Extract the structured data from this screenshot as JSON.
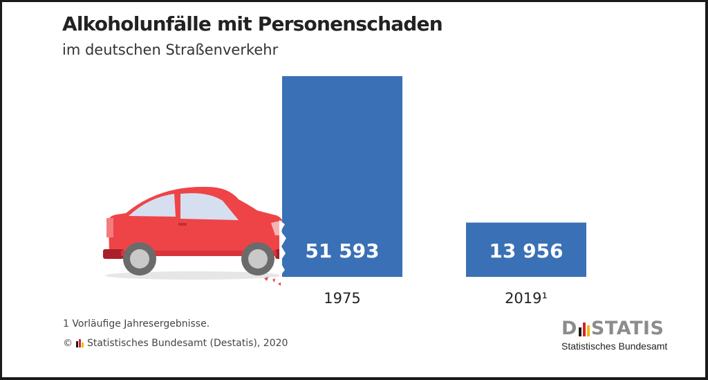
{
  "header": {
    "title": "Alkoholunfälle mit Personenschaden",
    "subtitle": "im deutschen Straßenverkehr"
  },
  "chart_data": {
    "type": "bar",
    "title": "Alkoholunfälle mit Personenschaden",
    "subtitle": "im deutschen Straßenverkehr",
    "categories": [
      "1975",
      "2019¹"
    ],
    "values": [
      51593,
      13956
    ],
    "value_labels": [
      "51 593",
      "13 956"
    ],
    "xlabel": "",
    "ylabel": "",
    "ylim": [
      0,
      51593
    ],
    "grid": false,
    "legend": "none",
    "bar_color": "#3a70b5",
    "label_color": "#ffffff",
    "annotations": [
      "red car illustration crashing into 1975 bar"
    ]
  },
  "footer": {
    "footnote": "1  Vorläufige Jahresergebnisse.",
    "copyright_symbol": "©",
    "credit": "Statistisches Bundesamt (Destatis), 2020",
    "logo_word_left": "D",
    "logo_word_right": "STATIS",
    "logo_subtitle": "Statistisches Bundesamt"
  },
  "colors": {
    "bar": "#3a70b5",
    "car_body": "#ef4447",
    "car_dark": "#a91f2a",
    "logo_gray": "#8c8c8c",
    "flag_black": "#1a1a1a",
    "flag_red": "#d9222a",
    "flag_gold": "#f1b80e"
  }
}
